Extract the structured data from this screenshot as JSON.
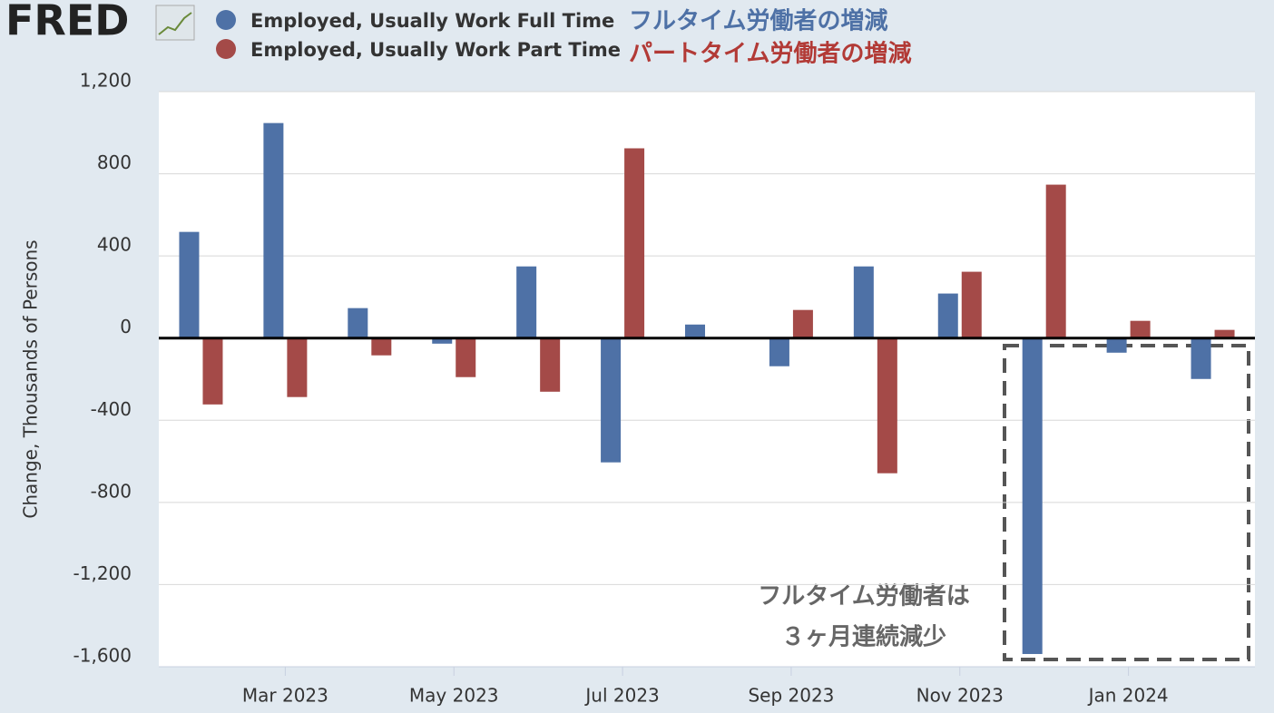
{
  "chart_data": {
    "type": "bar",
    "logo": "FRED",
    "y_axis_label": "Change, Thousands of Persons",
    "annotations": [
      "フルタイム労働者の増減",
      "パートタイム労働者の増減",
      "フルタイム労働者は",
      "３ヶ月連続減少"
    ],
    "categories": [
      null,
      "Mar 2023",
      null,
      "May 2023",
      null,
      "Jul 2023",
      null,
      "Sep 2023",
      null,
      "Nov 2023",
      null,
      "Jan 2024",
      null
    ],
    "series": [
      {
        "name": "Employed, Usually Work Full Time",
        "color": "#4e71a6",
        "values": [
          517,
          1047,
          146,
          -27,
          349,
          -605,
          66,
          -137,
          349,
          217,
          -1538,
          -71,
          -199
        ]
      },
      {
        "name": "Employed, Usually Work Part Time",
        "color": "#a44a48",
        "values": [
          -323,
          -287,
          -84,
          -190,
          -261,
          924,
          null,
          137,
          -658,
          323,
          747,
          84,
          40
        ]
      }
    ],
    "ylim": [
      -1600,
      1200
    ],
    "yticks": [
      {
        "value": -1600,
        "label": "-1,600"
      },
      {
        "value": -1200,
        "label": "-1,200"
      },
      -800,
      -400,
      0,
      400,
      800,
      {
        "value": 1200,
        "label": "1,200"
      }
    ],
    "grid": true
  }
}
